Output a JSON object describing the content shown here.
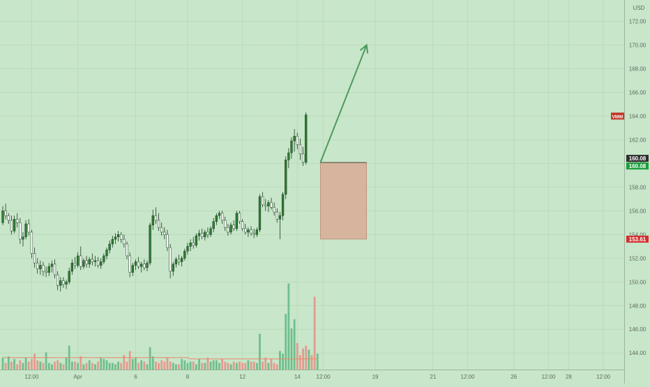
{
  "chart_data": {
    "type": "candlestick",
    "currency": "USD",
    "ticker": "VMW",
    "y_ticks": [
      144,
      146,
      148,
      150,
      152,
      154,
      156,
      158,
      160,
      162,
      164,
      166,
      168,
      170,
      172
    ],
    "y_tick_labels": [
      "144.00",
      "146.00",
      "148.00",
      "150.00",
      "152.00",
      "154.00",
      "156.00",
      "158.00",
      "160.00",
      "162.00",
      "164.00",
      "166.00",
      "168.00",
      "170.00",
      "172.00"
    ],
    "ylim": [
      142.6,
      173.8
    ],
    "x_ticks": [
      {
        "label": "12:00",
        "bar": 10
      },
      {
        "label": "Apr",
        "bar": 26
      },
      {
        "label": "6",
        "bar": 46
      },
      {
        "label": "8",
        "bar": 64
      },
      {
        "label": "12",
        "bar": 83
      },
      {
        "label": "14",
        "bar": 102
      },
      {
        "label": "12:00",
        "bar": 111
      },
      {
        "label": "19",
        "bar": 129
      },
      {
        "label": "21",
        "bar": 149
      },
      {
        "label": "12:00",
        "bar": 161
      },
      {
        "label": "26",
        "bar": 177
      },
      {
        "label": "12:00",
        "bar": 189
      },
      {
        "label": "28",
        "bar": 196
      },
      {
        "label": "12:00",
        "bar": 208
      }
    ],
    "candles": [
      [
        155.0,
        156.4,
        154.8,
        156.0
      ],
      [
        156.0,
        156.6,
        155.3,
        155.6
      ],
      [
        155.6,
        155.8,
        154.9,
        155.2
      ],
      [
        155.2,
        155.6,
        154.0,
        154.3
      ],
      [
        154.3,
        155.6,
        154.1,
        155.3
      ],
      [
        155.3,
        155.8,
        154.6,
        155.0
      ],
      [
        155.0,
        155.4,
        153.2,
        153.6
      ],
      [
        153.6,
        154.2,
        153.0,
        153.8
      ],
      [
        153.8,
        155.2,
        153.6,
        154.9
      ],
      [
        154.9,
        155.3,
        153.9,
        154.2
      ],
      [
        154.2,
        154.4,
        152.0,
        152.4
      ],
      [
        152.4,
        152.9,
        151.2,
        151.6
      ],
      [
        151.6,
        152.0,
        150.7,
        151.1
      ],
      [
        151.1,
        151.8,
        150.6,
        151.4
      ],
      [
        151.4,
        151.7,
        150.5,
        150.9
      ],
      [
        150.9,
        151.3,
        150.4,
        150.8
      ],
      [
        150.8,
        151.6,
        150.5,
        151.3
      ],
      [
        151.3,
        151.8,
        150.8,
        151.5
      ],
      [
        151.5,
        151.9,
        150.3,
        150.6
      ],
      [
        150.6,
        150.9,
        149.3,
        149.7
      ],
      [
        149.7,
        150.4,
        149.2,
        150.1
      ],
      [
        150.1,
        150.4,
        149.5,
        149.8
      ],
      [
        149.8,
        150.2,
        149.4,
        150.0
      ],
      [
        150.0,
        151.2,
        149.8,
        150.9
      ],
      [
        150.9,
        151.9,
        150.6,
        151.6
      ],
      [
        151.6,
        152.1,
        151.1,
        151.4
      ],
      [
        151.4,
        152.5,
        151.2,
        152.2
      ],
      [
        152.2,
        153.0,
        151.0,
        151.3
      ],
      [
        151.3,
        152.0,
        151.1,
        151.8
      ],
      [
        151.8,
        152.2,
        151.2,
        151.5
      ],
      [
        151.5,
        152.1,
        151.2,
        151.9
      ],
      [
        151.9,
        152.4,
        151.4,
        151.7
      ],
      [
        151.7,
        152.2,
        151.3,
        151.8
      ],
      [
        151.8,
        152.1,
        151.2,
        151.4
      ],
      [
        151.4,
        152.0,
        151.1,
        151.7
      ],
      [
        151.7,
        152.4,
        151.5,
        152.2
      ],
      [
        152.2,
        152.9,
        151.9,
        152.7
      ],
      [
        152.7,
        153.5,
        152.4,
        153.2
      ],
      [
        153.2,
        153.9,
        152.9,
        153.6
      ],
      [
        153.6,
        154.1,
        153.2,
        153.8
      ],
      [
        153.8,
        154.3,
        153.4,
        154.0
      ],
      [
        154.0,
        154.2,
        153.3,
        153.6
      ],
      [
        153.6,
        154.0,
        152.9,
        153.2
      ],
      [
        153.2,
        153.4,
        151.9,
        152.2
      ],
      [
        152.2,
        152.5,
        150.4,
        150.8
      ],
      [
        150.8,
        151.6,
        150.5,
        151.4
      ],
      [
        151.4,
        151.9,
        151.0,
        151.7
      ],
      [
        151.7,
        152.1,
        151.1,
        151.3
      ],
      [
        151.3,
        151.7,
        150.8,
        151.5
      ],
      [
        151.5,
        151.9,
        151.0,
        151.2
      ],
      [
        151.2,
        151.8,
        150.9,
        151.6
      ],
      [
        151.6,
        155.0,
        151.4,
        154.8
      ],
      [
        154.8,
        156.1,
        154.4,
        155.6
      ],
      [
        155.6,
        156.3,
        154.9,
        155.2
      ],
      [
        155.2,
        155.8,
        154.3,
        154.6
      ],
      [
        154.6,
        155.0,
        153.9,
        154.2
      ],
      [
        154.2,
        154.6,
        153.6,
        154.0
      ],
      [
        154.0,
        154.4,
        152.6,
        152.9
      ],
      [
        152.9,
        153.2,
        150.3,
        150.9
      ],
      [
        150.9,
        151.7,
        150.5,
        151.5
      ],
      [
        151.5,
        152.1,
        151.2,
        151.9
      ],
      [
        151.9,
        152.3,
        151.4,
        151.7
      ],
      [
        151.7,
        152.2,
        151.3,
        152.0
      ],
      [
        152.0,
        152.8,
        151.8,
        152.6
      ],
      [
        152.6,
        153.3,
        152.3,
        153.0
      ],
      [
        153.0,
        153.6,
        152.6,
        153.3
      ],
      [
        153.3,
        153.8,
        152.8,
        153.1
      ],
      [
        153.1,
        154.1,
        152.9,
        153.9
      ],
      [
        153.9,
        154.4,
        153.5,
        154.1
      ],
      [
        154.1,
        154.5,
        153.6,
        153.8
      ],
      [
        153.8,
        154.4,
        153.5,
        154.2
      ],
      [
        154.2,
        154.6,
        153.7,
        154.0
      ],
      [
        154.0,
        154.7,
        153.8,
        154.5
      ],
      [
        154.5,
        155.4,
        154.2,
        155.1
      ],
      [
        155.1,
        155.8,
        154.8,
        155.6
      ],
      [
        155.6,
        156.0,
        155.3,
        155.8
      ],
      [
        155.8,
        156.0,
        154.9,
        155.2
      ],
      [
        155.2,
        155.5,
        154.3,
        154.6
      ],
      [
        154.6,
        154.9,
        153.9,
        154.2
      ],
      [
        154.2,
        155.0,
        154.0,
        154.8
      ],
      [
        154.8,
        155.2,
        154.3,
        154.5
      ],
      [
        154.5,
        156.0,
        154.3,
        155.8
      ],
      [
        155.8,
        156.0,
        154.9,
        155.1
      ],
      [
        155.1,
        155.3,
        154.3,
        154.5
      ],
      [
        154.5,
        154.9,
        154.0,
        154.2
      ],
      [
        154.2,
        154.6,
        153.8,
        154.4
      ],
      [
        154.4,
        154.7,
        153.9,
        154.1
      ],
      [
        154.1,
        154.5,
        153.7,
        154.0
      ],
      [
        154.0,
        154.6,
        153.8,
        154.4
      ],
      [
        154.4,
        157.4,
        154.2,
        157.2
      ],
      [
        157.2,
        157.6,
        156.3,
        156.5
      ],
      [
        156.5,
        157.0,
        156.0,
        156.4
      ],
      [
        156.4,
        156.9,
        155.9,
        156.7
      ],
      [
        156.7,
        157.1,
        156.1,
        156.3
      ],
      [
        156.3,
        156.7,
        155.6,
        155.9
      ],
      [
        155.9,
        156.2,
        155.0,
        155.3
      ],
      [
        155.3,
        155.9,
        153.6,
        155.6
      ],
      [
        155.6,
        157.6,
        155.2,
        157.4
      ],
      [
        157.4,
        160.6,
        157.0,
        160.3
      ],
      [
        160.3,
        161.3,
        159.6,
        160.9
      ],
      [
        160.9,
        162.2,
        160.4,
        161.9
      ],
      [
        161.9,
        162.9,
        161.0,
        162.3
      ],
      [
        162.3,
        162.6,
        161.2,
        161.6
      ],
      [
        161.6,
        162.1,
        160.3,
        160.8
      ],
      [
        160.8,
        161.4,
        159.8,
        160.1
      ],
      [
        160.1,
        164.3,
        159.9,
        164.1
      ]
    ],
    "volumes": [
      9,
      5,
      10,
      6,
      8,
      4,
      7,
      5,
      9,
      6,
      8,
      12,
      7,
      6,
      5,
      13,
      5,
      4,
      6,
      7,
      5,
      4,
      9,
      18,
      6,
      6,
      5,
      10,
      4,
      5,
      7,
      5,
      4,
      6,
      9,
      8,
      7,
      5,
      5,
      4,
      6,
      5,
      11,
      6,
      14,
      8,
      9,
      5,
      7,
      6,
      4,
      17,
      10,
      6,
      5,
      7,
      6,
      9,
      6,
      5,
      4,
      4,
      8,
      7,
      5,
      6,
      6,
      4,
      8,
      5,
      5,
      9,
      6,
      7,
      7,
      5,
      8,
      6,
      5,
      4,
      6,
      5,
      6,
      5,
      5,
      7,
      6,
      6,
      5,
      27,
      6,
      9,
      5,
      8,
      5,
      4,
      14,
      12,
      42,
      65,
      31,
      38,
      20,
      11,
      16,
      18,
      15,
      11,
      55,
      12
    ],
    "volume_up": [
      true,
      false,
      true,
      false,
      true,
      false,
      false,
      true,
      true,
      false,
      false,
      false,
      false,
      true,
      false,
      true,
      true,
      true,
      false,
      false,
      true,
      false,
      true,
      true,
      true,
      false,
      true,
      false,
      true,
      false,
      true,
      false,
      true,
      false,
      true,
      true,
      true,
      true,
      true,
      true,
      true,
      false,
      false,
      false,
      false,
      true,
      true,
      false,
      true,
      false,
      true,
      true,
      true,
      false,
      false,
      false,
      false,
      false,
      false,
      true,
      true,
      false,
      true,
      true,
      true,
      true,
      false,
      true,
      true,
      false,
      true,
      false,
      true,
      true,
      true,
      true,
      false,
      false,
      false,
      true,
      false,
      true,
      false,
      false,
      false,
      true,
      false,
      false,
      true,
      true,
      false,
      false,
      true,
      false,
      false,
      false,
      true,
      true,
      true,
      true,
      true,
      true,
      false,
      false,
      false,
      false,
      true,
      false,
      false,
      true
    ],
    "volume_ma": [
      9,
      9,
      9,
      9,
      9,
      9,
      9,
      9,
      9,
      9,
      9,
      9,
      9,
      9,
      9,
      9,
      9,
      9,
      9,
      9,
      9,
      9,
      9,
      9,
      9,
      9,
      9,
      9,
      9,
      9,
      9,
      9,
      9,
      9,
      9,
      9,
      9,
      9,
      9,
      9,
      9,
      9,
      9,
      9,
      9,
      9,
      9,
      9,
      9,
      9,
      9,
      9,
      9,
      9,
      9,
      9,
      9,
      9,
      9,
      9,
      9,
      9,
      9,
      9,
      9,
      8,
      8,
      8,
      8,
      8,
      8,
      8,
      8,
      8,
      8,
      8,
      8,
      8,
      8,
      8,
      8,
      8,
      8,
      8,
      8,
      8,
      8,
      8,
      8,
      8,
      8,
      8,
      8,
      8,
      8,
      8,
      8,
      8,
      8,
      8,
      8,
      8,
      8,
      8,
      8,
      8,
      8,
      8,
      8,
      8
    ],
    "price_labels": [
      {
        "text": "160.08",
        "value": 160.08,
        "color": "#2e2e2e"
      },
      {
        "text": "160.08",
        "value": 160.08,
        "color": "#1a9e3a"
      },
      {
        "text": "153.61",
        "value": 153.61,
        "color": "#d32f2f"
      }
    ],
    "stop_zone": {
      "from_bar": 110,
      "to_bar": 126,
      "top": 160.08,
      "bottom": 153.61
    },
    "projection_arrow": {
      "from_bar": 110,
      "from_value": 160.08,
      "to_bar": 126,
      "to_value": 170.0
    },
    "colors": {
      "background": "#c8e6c9",
      "up": "#26a69a",
      "down": "#ef5350",
      "candle_body": "#2e7d32",
      "candle_down_fill": "#ffffff",
      "volume_up": "#6fbf8e",
      "volume_down": "#e59a8f",
      "zone": "#d7b49e",
      "arrow": "#4a9a5e",
      "axis_text": "#5f6b5f"
    }
  }
}
